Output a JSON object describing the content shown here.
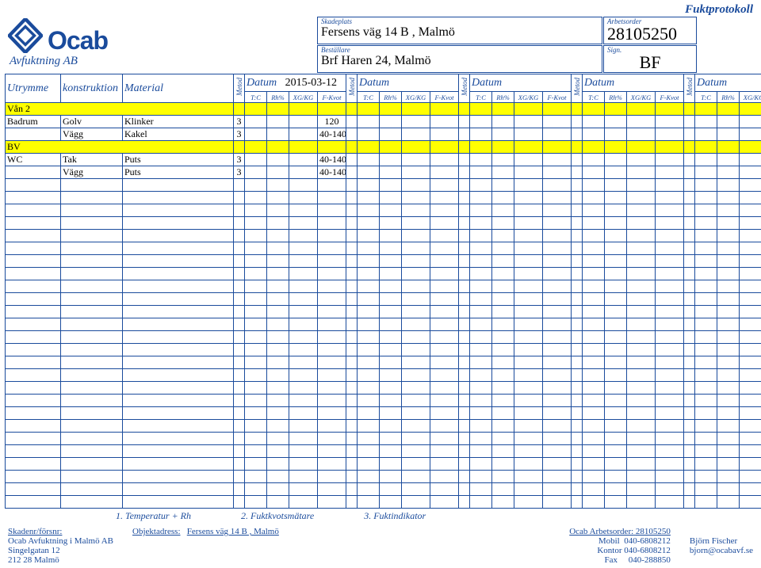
{
  "doc_title": "Fuktprotokoll",
  "brand": {
    "name": "Ocab",
    "sub": "Avfuktning AB"
  },
  "header": {
    "skadeplats_label": "Skadeplats",
    "skadeplats": "Fersens väg 14 B , Malmö",
    "bestallare_label": "Beställare",
    "bestallare": "Brf Haren 24, Malmö",
    "arbetsorder_label": "Arbetsorder",
    "arbetsorder": "28105250",
    "sign_label": "Sign.",
    "sign": "BF"
  },
  "cols": {
    "utrymme": "Utrymme",
    "konstruktion": "konstruktion",
    "material": "Material",
    "metod": "Metod",
    "datum": "Datum",
    "date1": "2015-03-12",
    "sub": [
      "T:C",
      "Rh%",
      "XG/KG",
      "F-Kvot"
    ]
  },
  "rows": [
    {
      "type": "section",
      "label": "Vån 2"
    },
    {
      "type": "data",
      "utrymme": "Badrum",
      "konstruktion": "Golv",
      "material": "Klinker",
      "m": "3",
      "v4": "120"
    },
    {
      "type": "data",
      "utrymme": "",
      "konstruktion": "Vägg",
      "material": "Kakel",
      "m": "3",
      "v4": "40-140"
    },
    {
      "type": "section",
      "label": "BV"
    },
    {
      "type": "data",
      "utrymme": "WC",
      "konstruktion": "Tak",
      "material": "Puts",
      "m": "3",
      "v4": "40-140"
    },
    {
      "type": "data",
      "utrymme": "",
      "konstruktion": "Vägg",
      "material": "Puts",
      "m": "3",
      "v4": "40-140"
    }
  ],
  "blank_rows": 26,
  "legend": {
    "l1": "1. Temperatur + Rh",
    "l2": "2. Fuktkvotsmätare",
    "l3": "3. Fuktindikator"
  },
  "footer": {
    "skadenr_label": "Skadenr/försnr:",
    "objekt_label": "Objektadress:",
    "objekt": "Fersens väg 14 B , Malmö",
    "company": "Ocab Avfuktning i Malmö AB",
    "addr1": "Singelgatan 12",
    "addr2": "212 28 Malmö",
    "arbetsorder_label": "Ocab Arbetsorder:",
    "arbetsorder": "28105250",
    "mobil_label": "Mobil",
    "mobil": "040-6808212",
    "kontor_label": "Kontor",
    "kontor": "040-6808212",
    "fax_label": "Fax",
    "fax": "040-288850",
    "person": "Björn Fischer",
    "email": "bjorn@ocabavf.se"
  },
  "colors": {
    "line": "#1a4b9c",
    "highlight": "#ffff00"
  }
}
